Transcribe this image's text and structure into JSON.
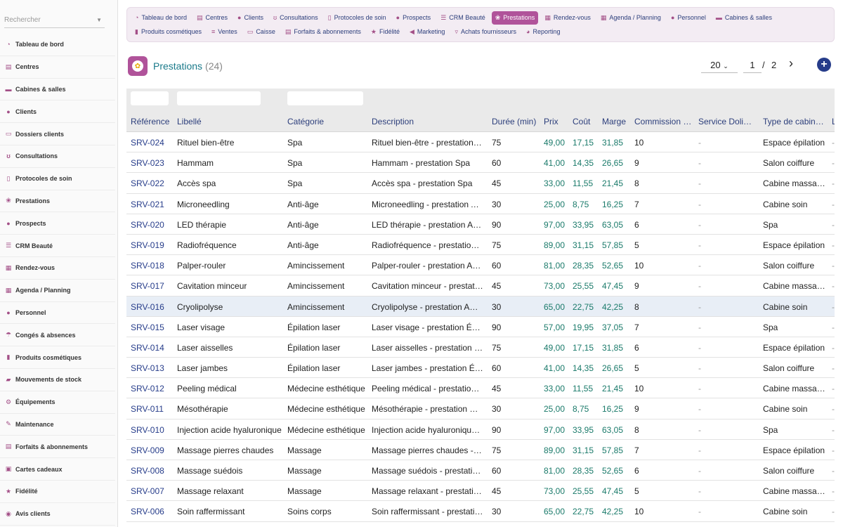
{
  "search": {
    "placeholder": "Rechercher"
  },
  "sidebar": {
    "items": [
      {
        "label": "Tableau de bord",
        "icon": "dashboard-icon",
        "glyph": "◔"
      },
      {
        "label": "Centres",
        "icon": "building-icon",
        "glyph": "▤"
      },
      {
        "label": "Cabines & salles",
        "icon": "bed-icon",
        "glyph": "▬"
      },
      {
        "label": "Clients",
        "icon": "user-icon",
        "glyph": "●"
      },
      {
        "label": "Dossiers clients",
        "icon": "folder-icon",
        "glyph": "▭"
      },
      {
        "label": "Consultations",
        "icon": "stethoscope-icon",
        "glyph": "ʊ"
      },
      {
        "label": "Protocoles de soin",
        "icon": "clipboard-icon",
        "glyph": "▯"
      },
      {
        "label": "Prestations",
        "icon": "spa-icon",
        "glyph": "❀"
      },
      {
        "label": "Prospects",
        "icon": "user-plus-icon",
        "glyph": "●"
      },
      {
        "label": "CRM Beauté",
        "icon": "list-icon",
        "glyph": "☰"
      },
      {
        "label": "Rendez-vous",
        "icon": "calendar-icon",
        "glyph": "▦"
      },
      {
        "label": "Agenda / Planning",
        "icon": "calendar-grid-icon",
        "glyph": "▦"
      },
      {
        "label": "Personnel",
        "icon": "staff-icon",
        "glyph": "●"
      },
      {
        "label": "Congés & absences",
        "icon": "umbrella-icon",
        "glyph": "☂"
      },
      {
        "label": "Produits cosmétiques",
        "icon": "bottle-icon",
        "glyph": "▮"
      },
      {
        "label": "Mouvements de stock",
        "icon": "truck-icon",
        "glyph": "▰"
      },
      {
        "label": "Équipements",
        "icon": "gears-icon",
        "glyph": "⚙"
      },
      {
        "label": "Maintenance",
        "icon": "wrench-icon",
        "glyph": "✎"
      },
      {
        "label": "Forfaits & abonnements",
        "icon": "ticket-icon",
        "glyph": "▤"
      },
      {
        "label": "Cartes cadeaux",
        "icon": "gift-icon",
        "glyph": "▣"
      },
      {
        "label": "Fidélité",
        "icon": "star-icon",
        "glyph": "★"
      },
      {
        "label": "Avis clients",
        "icon": "comment-icon",
        "glyph": "◉"
      }
    ]
  },
  "topnav": {
    "row1": [
      {
        "label": "Tableau de bord",
        "icon": "dashboard-icon",
        "glyph": "◔",
        "active": false
      },
      {
        "label": "Centres",
        "icon": "building-icon",
        "glyph": "▤",
        "active": false
      },
      {
        "label": "Clients",
        "icon": "user-icon",
        "glyph": "●",
        "active": false
      },
      {
        "label": "Consultations",
        "icon": "stethoscope-icon",
        "glyph": "ʊ",
        "active": false
      },
      {
        "label": "Protocoles de soin",
        "icon": "clipboard-icon",
        "glyph": "▯",
        "active": false
      },
      {
        "label": "Prospects",
        "icon": "user-plus-icon",
        "glyph": "●",
        "active": false
      },
      {
        "label": "CRM Beauté",
        "icon": "list-icon",
        "glyph": "☰",
        "active": false
      },
      {
        "label": "Prestations",
        "icon": "spa-icon",
        "glyph": "❀",
        "active": true
      },
      {
        "label": "Rendez-vous",
        "icon": "calendar-icon",
        "glyph": "▦",
        "active": false
      },
      {
        "label": "Agenda / Planning",
        "icon": "calendar-grid-icon",
        "glyph": "▦",
        "active": false
      },
      {
        "label": "Personnel",
        "icon": "staff-icon",
        "glyph": "●",
        "active": false
      },
      {
        "label": "Cabines & salles",
        "icon": "bed-icon",
        "glyph": "▬",
        "active": false
      }
    ],
    "row2": [
      {
        "label": "Produits cosmétiques",
        "icon": "bottle-icon",
        "glyph": "▮",
        "active": false
      },
      {
        "label": "Ventes",
        "icon": "sales-icon",
        "glyph": "≡",
        "active": false
      },
      {
        "label": "Caisse",
        "icon": "cash-register-icon",
        "glyph": "▭",
        "active": false
      },
      {
        "label": "Forfaits & abonnements",
        "icon": "ticket-icon",
        "glyph": "▤",
        "active": false
      },
      {
        "label": "Fidélité",
        "icon": "star-icon",
        "glyph": "★",
        "active": false
      },
      {
        "label": "Marketing",
        "icon": "megaphone-icon",
        "glyph": "◀",
        "active": false
      },
      {
        "label": "Achats fournisseurs",
        "icon": "basket-icon",
        "glyph": "▿",
        "active": false
      },
      {
        "label": "Reporting",
        "icon": "chart-pie-icon",
        "glyph": "◕",
        "active": false
      }
    ]
  },
  "page": {
    "title": "Prestations",
    "count": "(24)",
    "page_size": "20",
    "current_page": "1",
    "separator": "/",
    "total_pages": "2",
    "next_glyph": "›",
    "add_glyph": "+"
  },
  "table": {
    "headers": [
      "Référence",
      "Libellé",
      "Catégorie",
      "Description",
      "Durée (min)",
      "Prix",
      "Coût",
      "Marge",
      "Commission …",
      "Service Doli…",
      "Type de cabin…",
      "L"
    ],
    "rows": [
      [
        "SRV-024",
        "Rituel bien-être",
        "Spa",
        "Rituel bien-être - prestation Spa",
        "75",
        "49,00",
        "17,15",
        "31,85",
        "10",
        "-",
        "Espace épilation",
        "-"
      ],
      [
        "SRV-023",
        "Hammam",
        "Spa",
        "Hammam - prestation Spa",
        "60",
        "41,00",
        "14,35",
        "26,65",
        "9",
        "-",
        "Salon coiffure",
        "-"
      ],
      [
        "SRV-022",
        "Accès spa",
        "Spa",
        "Accès spa - prestation Spa",
        "45",
        "33,00",
        "11,55",
        "21,45",
        "8",
        "-",
        "Cabine massage",
        "-"
      ],
      [
        "SRV-021",
        "Microneedling",
        "Anti-âge",
        "Microneedling - prestation Anti-âge",
        "30",
        "25,00",
        "8,75",
        "16,25",
        "7",
        "-",
        "Cabine soin",
        "-"
      ],
      [
        "SRV-020",
        "LED thérapie",
        "Anti-âge",
        "LED thérapie - prestation Anti-âge",
        "90",
        "97,00",
        "33,95",
        "63,05",
        "6",
        "-",
        "Spa",
        "-"
      ],
      [
        "SRV-019",
        "Radiofréquence",
        "Anti-âge",
        "Radiofréquence - prestation Anti-âge",
        "75",
        "89,00",
        "31,15",
        "57,85",
        "5",
        "-",
        "Espace épilation",
        "-"
      ],
      [
        "SRV-018",
        "Palper-rouler",
        "Amincissement",
        "Palper-rouler - prestation Amincissement",
        "60",
        "81,00",
        "28,35",
        "52,65",
        "10",
        "-",
        "Salon coiffure",
        "-"
      ],
      [
        "SRV-017",
        "Cavitation minceur",
        "Amincissement",
        "Cavitation minceur - prestation Amincissement",
        "45",
        "73,00",
        "25,55",
        "47,45",
        "9",
        "-",
        "Cabine massage",
        "-"
      ],
      [
        "SRV-016",
        "Cryolipolyse",
        "Amincissement",
        "Cryolipolyse - prestation Amincissement",
        "30",
        "65,00",
        "22,75",
        "42,25",
        "8",
        "-",
        "Cabine soin",
        "-"
      ],
      [
        "SRV-015",
        "Laser visage",
        "Épilation laser",
        "Laser visage - prestation Épilation laser",
        "90",
        "57,00",
        "19,95",
        "37,05",
        "7",
        "-",
        "Spa",
        "-"
      ],
      [
        "SRV-014",
        "Laser aisselles",
        "Épilation laser",
        "Laser aisselles - prestation Épilation laser",
        "75",
        "49,00",
        "17,15",
        "31,85",
        "6",
        "-",
        "Espace épilation",
        "-"
      ],
      [
        "SRV-013",
        "Laser jambes",
        "Épilation laser",
        "Laser jambes - prestation Épilation laser",
        "60",
        "41,00",
        "14,35",
        "26,65",
        "5",
        "-",
        "Salon coiffure",
        "-"
      ],
      [
        "SRV-012",
        "Peeling médical",
        "Médecine esthétique",
        "Peeling médical - prestation Médecine esthétique",
        "45",
        "33,00",
        "11,55",
        "21,45",
        "10",
        "-",
        "Cabine massage",
        "-"
      ],
      [
        "SRV-011",
        "Mésothérapie",
        "Médecine esthétique",
        "Mésothérapie - prestation Médecine esthétique",
        "30",
        "25,00",
        "8,75",
        "16,25",
        "9",
        "-",
        "Cabine soin",
        "-"
      ],
      [
        "SRV-010",
        "Injection acide hyaluronique",
        "Médecine esthétique",
        "Injection acide hyaluronique - prestation Médecine esthétique",
        "90",
        "97,00",
        "33,95",
        "63,05",
        "8",
        "-",
        "Spa",
        "-"
      ],
      [
        "SRV-009",
        "Massage pierres chaudes",
        "Massage",
        "Massage pierres chaudes - prestation Massage",
        "75",
        "89,00",
        "31,15",
        "57,85",
        "7",
        "-",
        "Espace épilation",
        "-"
      ],
      [
        "SRV-008",
        "Massage suédois",
        "Massage",
        "Massage suédois - prestation Massage",
        "60",
        "81,00",
        "28,35",
        "52,65",
        "6",
        "-",
        "Salon coiffure",
        "-"
      ],
      [
        "SRV-007",
        "Massage relaxant",
        "Massage",
        "Massage relaxant - prestation Massage",
        "45",
        "73,00",
        "25,55",
        "47,45",
        "5",
        "-",
        "Cabine massage",
        "-"
      ],
      [
        "SRV-006",
        "Soin raffermissant",
        "Soins corps",
        "Soin raffermissant - prestation Soins corps",
        "30",
        "65,00",
        "22,75",
        "42,25",
        "10",
        "-",
        "Cabine soin",
        "-"
      ]
    ],
    "highlight_row": 8
  },
  "colors": {
    "accent": "#b0539a",
    "link": "#263c8a",
    "number": "#1a7a6a",
    "title": "#1a7a8a"
  }
}
